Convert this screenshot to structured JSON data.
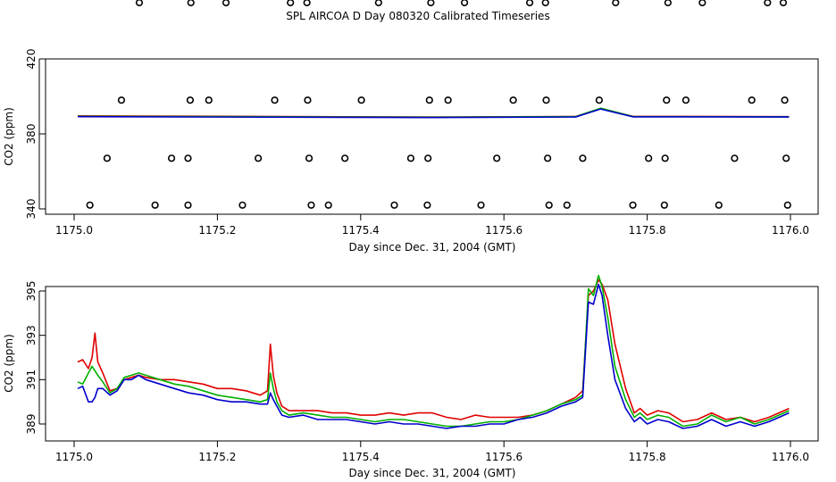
{
  "title": "SPL AIRCOA D  Day 080320  Calibrated Timeseries",
  "chart_data": [
    {
      "type": "scatter",
      "xlabel": "Day since Dec. 31, 2004 (GMT)",
      "ylabel": "CO2 (ppm)",
      "xlim": [
        1175.0,
        1176.0
      ],
      "ylim": [
        338,
        457
      ],
      "x_ticks": [
        1175.0,
        1175.2,
        1175.4,
        1175.6,
        1175.8,
        1176.0
      ],
      "x_tick_labels": [
        "1175.0",
        "1175.2",
        "1175.4",
        "1175.6",
        "1175.8",
        "1176.0"
      ],
      "y_ticks": [
        340,
        380,
        420
      ],
      "y_tick_labels": [
        "340",
        "380",
        "420"
      ],
      "grid": false,
      "legend": "none",
      "colors": {
        "red": "#e00000",
        "green": "#00b000",
        "blue": "#0000cc",
        "points": "#000000"
      },
      "points": [
        {
          "x": 1175.022,
          "y": 342
        },
        {
          "x": 1175.046,
          "y": 367
        },
        {
          "x": 1175.066,
          "y": 398
        },
        {
          "x": 1175.091,
          "y": 450
        },
        {
          "x": 1175.113,
          "y": 342
        },
        {
          "x": 1175.136,
          "y": 367
        },
        {
          "x": 1175.159,
          "y": 342
        },
        {
          "x": 1175.159,
          "y": 367
        },
        {
          "x": 1175.162,
          "y": 398
        },
        {
          "x": 1175.163,
          "y": 450
        },
        {
          "x": 1175.188,
          "y": 398
        },
        {
          "x": 1175.212,
          "y": 450
        },
        {
          "x": 1175.235,
          "y": 342
        },
        {
          "x": 1175.257,
          "y": 367
        },
        {
          "x": 1175.28,
          "y": 398
        },
        {
          "x": 1175.302,
          "y": 450
        },
        {
          "x": 1175.325,
          "y": 450
        },
        {
          "x": 1175.326,
          "y": 398
        },
        {
          "x": 1175.328,
          "y": 367
        },
        {
          "x": 1175.331,
          "y": 342
        },
        {
          "x": 1175.355,
          "y": 342
        },
        {
          "x": 1175.378,
          "y": 367
        },
        {
          "x": 1175.401,
          "y": 398
        },
        {
          "x": 1175.425,
          "y": 450
        },
        {
          "x": 1175.447,
          "y": 342
        },
        {
          "x": 1175.47,
          "y": 367
        },
        {
          "x": 1175.493,
          "y": 342
        },
        {
          "x": 1175.494,
          "y": 367
        },
        {
          "x": 1175.496,
          "y": 398
        },
        {
          "x": 1175.498,
          "y": 450
        },
        {
          "x": 1175.522,
          "y": 398
        },
        {
          "x": 1175.545,
          "y": 450
        },
        {
          "x": 1175.568,
          "y": 342
        },
        {
          "x": 1175.59,
          "y": 367
        },
        {
          "x": 1175.613,
          "y": 398
        },
        {
          "x": 1175.636,
          "y": 450
        },
        {
          "x": 1175.658,
          "y": 450
        },
        {
          "x": 1175.659,
          "y": 398
        },
        {
          "x": 1175.661,
          "y": 367
        },
        {
          "x": 1175.663,
          "y": 342
        },
        {
          "x": 1175.688,
          "y": 342
        },
        {
          "x": 1175.71,
          "y": 367
        },
        {
          "x": 1175.733,
          "y": 398
        },
        {
          "x": 1175.756,
          "y": 450
        },
        {
          "x": 1175.78,
          "y": 342
        },
        {
          "x": 1175.802,
          "y": 367
        },
        {
          "x": 1175.824,
          "y": 342
        },
        {
          "x": 1175.825,
          "y": 367
        },
        {
          "x": 1175.827,
          "y": 398
        },
        {
          "x": 1175.829,
          "y": 450
        },
        {
          "x": 1175.854,
          "y": 398
        },
        {
          "x": 1175.877,
          "y": 450
        },
        {
          "x": 1175.9,
          "y": 342
        },
        {
          "x": 1175.922,
          "y": 367
        },
        {
          "x": 1175.946,
          "y": 398
        },
        {
          "x": 1175.968,
          "y": 450
        },
        {
          "x": 1175.99,
          "y": 450
        },
        {
          "x": 1175.992,
          "y": 398
        },
        {
          "x": 1175.994,
          "y": 367
        },
        {
          "x": 1175.996,
          "y": 342
        }
      ],
      "series": [
        {
          "color": "red",
          "x": [
            1175.005,
            1175.5,
            1175.7,
            1175.735,
            1175.78,
            1175.998
          ],
          "y": [
            389.6,
            389.0,
            389.3,
            393.5,
            389.4,
            389.2
          ]
        },
        {
          "color": "green",
          "x": [
            1175.005,
            1175.5,
            1175.7,
            1175.735,
            1175.78,
            1175.998
          ],
          "y": [
            389.4,
            388.9,
            389.2,
            393.7,
            389.3,
            389.1
          ]
        },
        {
          "color": "blue",
          "x": [
            1175.005,
            1175.5,
            1175.7,
            1175.735,
            1175.78,
            1175.998
          ],
          "y": [
            389.2,
            388.7,
            389.0,
            393.3,
            389.1,
            389.0
          ]
        }
      ]
    },
    {
      "type": "line",
      "xlabel": "Day since Dec. 31, 2004 (GMT)",
      "ylabel": "CO2 (ppm)",
      "xlim": [
        1175.0,
        1176.0
      ],
      "ylim": [
        388.6,
        395.9
      ],
      "x_ticks": [
        1175.0,
        1175.2,
        1175.4,
        1175.6,
        1175.8,
        1176.0
      ],
      "x_tick_labels": [
        "1175.0",
        "1175.2",
        "1175.4",
        "1175.6",
        "1175.8",
        "1176.0"
      ],
      "y_ticks": [
        389,
        391,
        393,
        395
      ],
      "y_tick_labels": [
        "389",
        "391",
        "393",
        "395"
      ],
      "grid": false,
      "legend": "none",
      "colors": {
        "red": "#e00000",
        "green": "#00b000",
        "blue": "#0000cc"
      },
      "series": [
        {
          "color": "red",
          "x": [
            1175.005,
            1175.012,
            1175.02,
            1175.025,
            1175.029,
            1175.033,
            1175.04,
            1175.05,
            1175.06,
            1175.07,
            1175.08,
            1175.09,
            1175.1,
            1175.12,
            1175.14,
            1175.16,
            1175.18,
            1175.2,
            1175.22,
            1175.24,
            1175.26,
            1175.27,
            1175.274,
            1175.278,
            1175.283,
            1175.29,
            1175.3,
            1175.32,
            1175.34,
            1175.36,
            1175.38,
            1175.4,
            1175.42,
            1175.44,
            1175.46,
            1175.48,
            1175.5,
            1175.52,
            1175.54,
            1175.56,
            1175.58,
            1175.6,
            1175.62,
            1175.64,
            1175.66,
            1175.68,
            1175.7,
            1175.71,
            1175.718,
            1175.725,
            1175.732,
            1175.737,
            1175.745,
            1175.755,
            1175.77,
            1175.782,
            1175.79,
            1175.8,
            1175.815,
            1175.83,
            1175.85,
            1175.87,
            1175.89,
            1175.91,
            1175.93,
            1175.95,
            1175.97,
            1175.998
          ],
          "y": [
            391.8,
            391.9,
            391.5,
            392.0,
            393.1,
            391.8,
            391.3,
            390.5,
            390.6,
            391.0,
            391.1,
            391.2,
            391.1,
            391.0,
            391.0,
            390.9,
            390.8,
            390.6,
            390.6,
            390.5,
            390.3,
            390.5,
            392.6,
            391.2,
            390.4,
            389.8,
            389.6,
            389.6,
            389.6,
            389.5,
            389.5,
            389.4,
            389.4,
            389.5,
            389.4,
            389.5,
            389.5,
            389.3,
            389.2,
            389.4,
            389.3,
            389.3,
            389.3,
            389.4,
            389.6,
            389.9,
            390.2,
            390.5,
            394.8,
            395.0,
            395.5,
            395.3,
            394.6,
            392.6,
            390.6,
            389.5,
            389.7,
            389.4,
            389.6,
            389.5,
            389.1,
            389.2,
            389.5,
            389.2,
            389.3,
            389.1,
            389.3,
            389.7
          ]
        },
        {
          "color": "green",
          "x": [
            1175.005,
            1175.012,
            1175.02,
            1175.025,
            1175.029,
            1175.033,
            1175.04,
            1175.05,
            1175.06,
            1175.07,
            1175.08,
            1175.09,
            1175.1,
            1175.12,
            1175.14,
            1175.16,
            1175.18,
            1175.2,
            1175.22,
            1175.24,
            1175.26,
            1175.27,
            1175.274,
            1175.278,
            1175.283,
            1175.29,
            1175.3,
            1175.32,
            1175.34,
            1175.36,
            1175.38,
            1175.4,
            1175.42,
            1175.44,
            1175.46,
            1175.48,
            1175.5,
            1175.52,
            1175.54,
            1175.56,
            1175.58,
            1175.6,
            1175.62,
            1175.64,
            1175.66,
            1175.68,
            1175.7,
            1175.71,
            1175.718,
            1175.725,
            1175.732,
            1175.737,
            1175.745,
            1175.755,
            1175.77,
            1175.782,
            1175.79,
            1175.8,
            1175.815,
            1175.83,
            1175.85,
            1175.87,
            1175.89,
            1175.91,
            1175.93,
            1175.95,
            1175.97,
            1175.998
          ],
          "y": [
            390.9,
            390.8,
            391.3,
            391.6,
            391.4,
            391.2,
            390.9,
            390.4,
            390.6,
            391.1,
            391.2,
            391.3,
            391.2,
            391.0,
            390.8,
            390.7,
            390.5,
            390.3,
            390.2,
            390.1,
            390.0,
            390.1,
            391.3,
            390.6,
            390.0,
            389.6,
            389.4,
            389.5,
            389.4,
            389.3,
            389.3,
            389.2,
            389.1,
            389.2,
            389.2,
            389.1,
            389.0,
            388.9,
            388.9,
            389.0,
            389.1,
            389.1,
            389.2,
            389.4,
            389.6,
            389.9,
            390.1,
            390.3,
            395.1,
            394.8,
            395.7,
            395.2,
            393.8,
            391.6,
            390.1,
            389.3,
            389.5,
            389.2,
            389.4,
            389.3,
            388.9,
            389.0,
            389.4,
            389.1,
            389.3,
            389.0,
            389.2,
            389.6
          ]
        },
        {
          "color": "blue",
          "x": [
            1175.005,
            1175.012,
            1175.02,
            1175.025,
            1175.029,
            1175.033,
            1175.04,
            1175.05,
            1175.06,
            1175.07,
            1175.08,
            1175.09,
            1175.1,
            1175.12,
            1175.14,
            1175.16,
            1175.18,
            1175.2,
            1175.22,
            1175.24,
            1175.26,
            1175.27,
            1175.274,
            1175.278,
            1175.283,
            1175.29,
            1175.3,
            1175.32,
            1175.34,
            1175.36,
            1175.38,
            1175.4,
            1175.42,
            1175.44,
            1175.46,
            1175.48,
            1175.5,
            1175.52,
            1175.54,
            1175.56,
            1175.58,
            1175.6,
            1175.62,
            1175.64,
            1175.66,
            1175.68,
            1175.7,
            1175.71,
            1175.718,
            1175.725,
            1175.732,
            1175.737,
            1175.745,
            1175.755,
            1175.77,
            1175.782,
            1175.79,
            1175.8,
            1175.815,
            1175.83,
            1175.85,
            1175.87,
            1175.89,
            1175.91,
            1175.93,
            1175.95,
            1175.97,
            1175.998
          ],
          "y": [
            390.6,
            390.7,
            390.0,
            390.0,
            390.2,
            390.6,
            390.6,
            390.3,
            390.5,
            391.0,
            391.0,
            391.2,
            391.0,
            390.8,
            390.6,
            390.4,
            390.3,
            390.1,
            390.0,
            390.0,
            389.9,
            389.9,
            390.4,
            390.1,
            389.8,
            389.4,
            389.3,
            389.4,
            389.2,
            389.2,
            389.2,
            389.1,
            389.0,
            389.1,
            389.0,
            389.0,
            388.9,
            388.8,
            388.9,
            388.9,
            389.0,
            389.0,
            389.2,
            389.3,
            389.5,
            389.8,
            390.0,
            390.2,
            394.5,
            394.4,
            395.3,
            394.8,
            393.0,
            391.0,
            389.7,
            389.1,
            389.3,
            389.0,
            389.2,
            389.1,
            388.8,
            388.9,
            389.2,
            388.9,
            389.1,
            388.9,
            389.1,
            389.5
          ]
        }
      ]
    }
  ]
}
